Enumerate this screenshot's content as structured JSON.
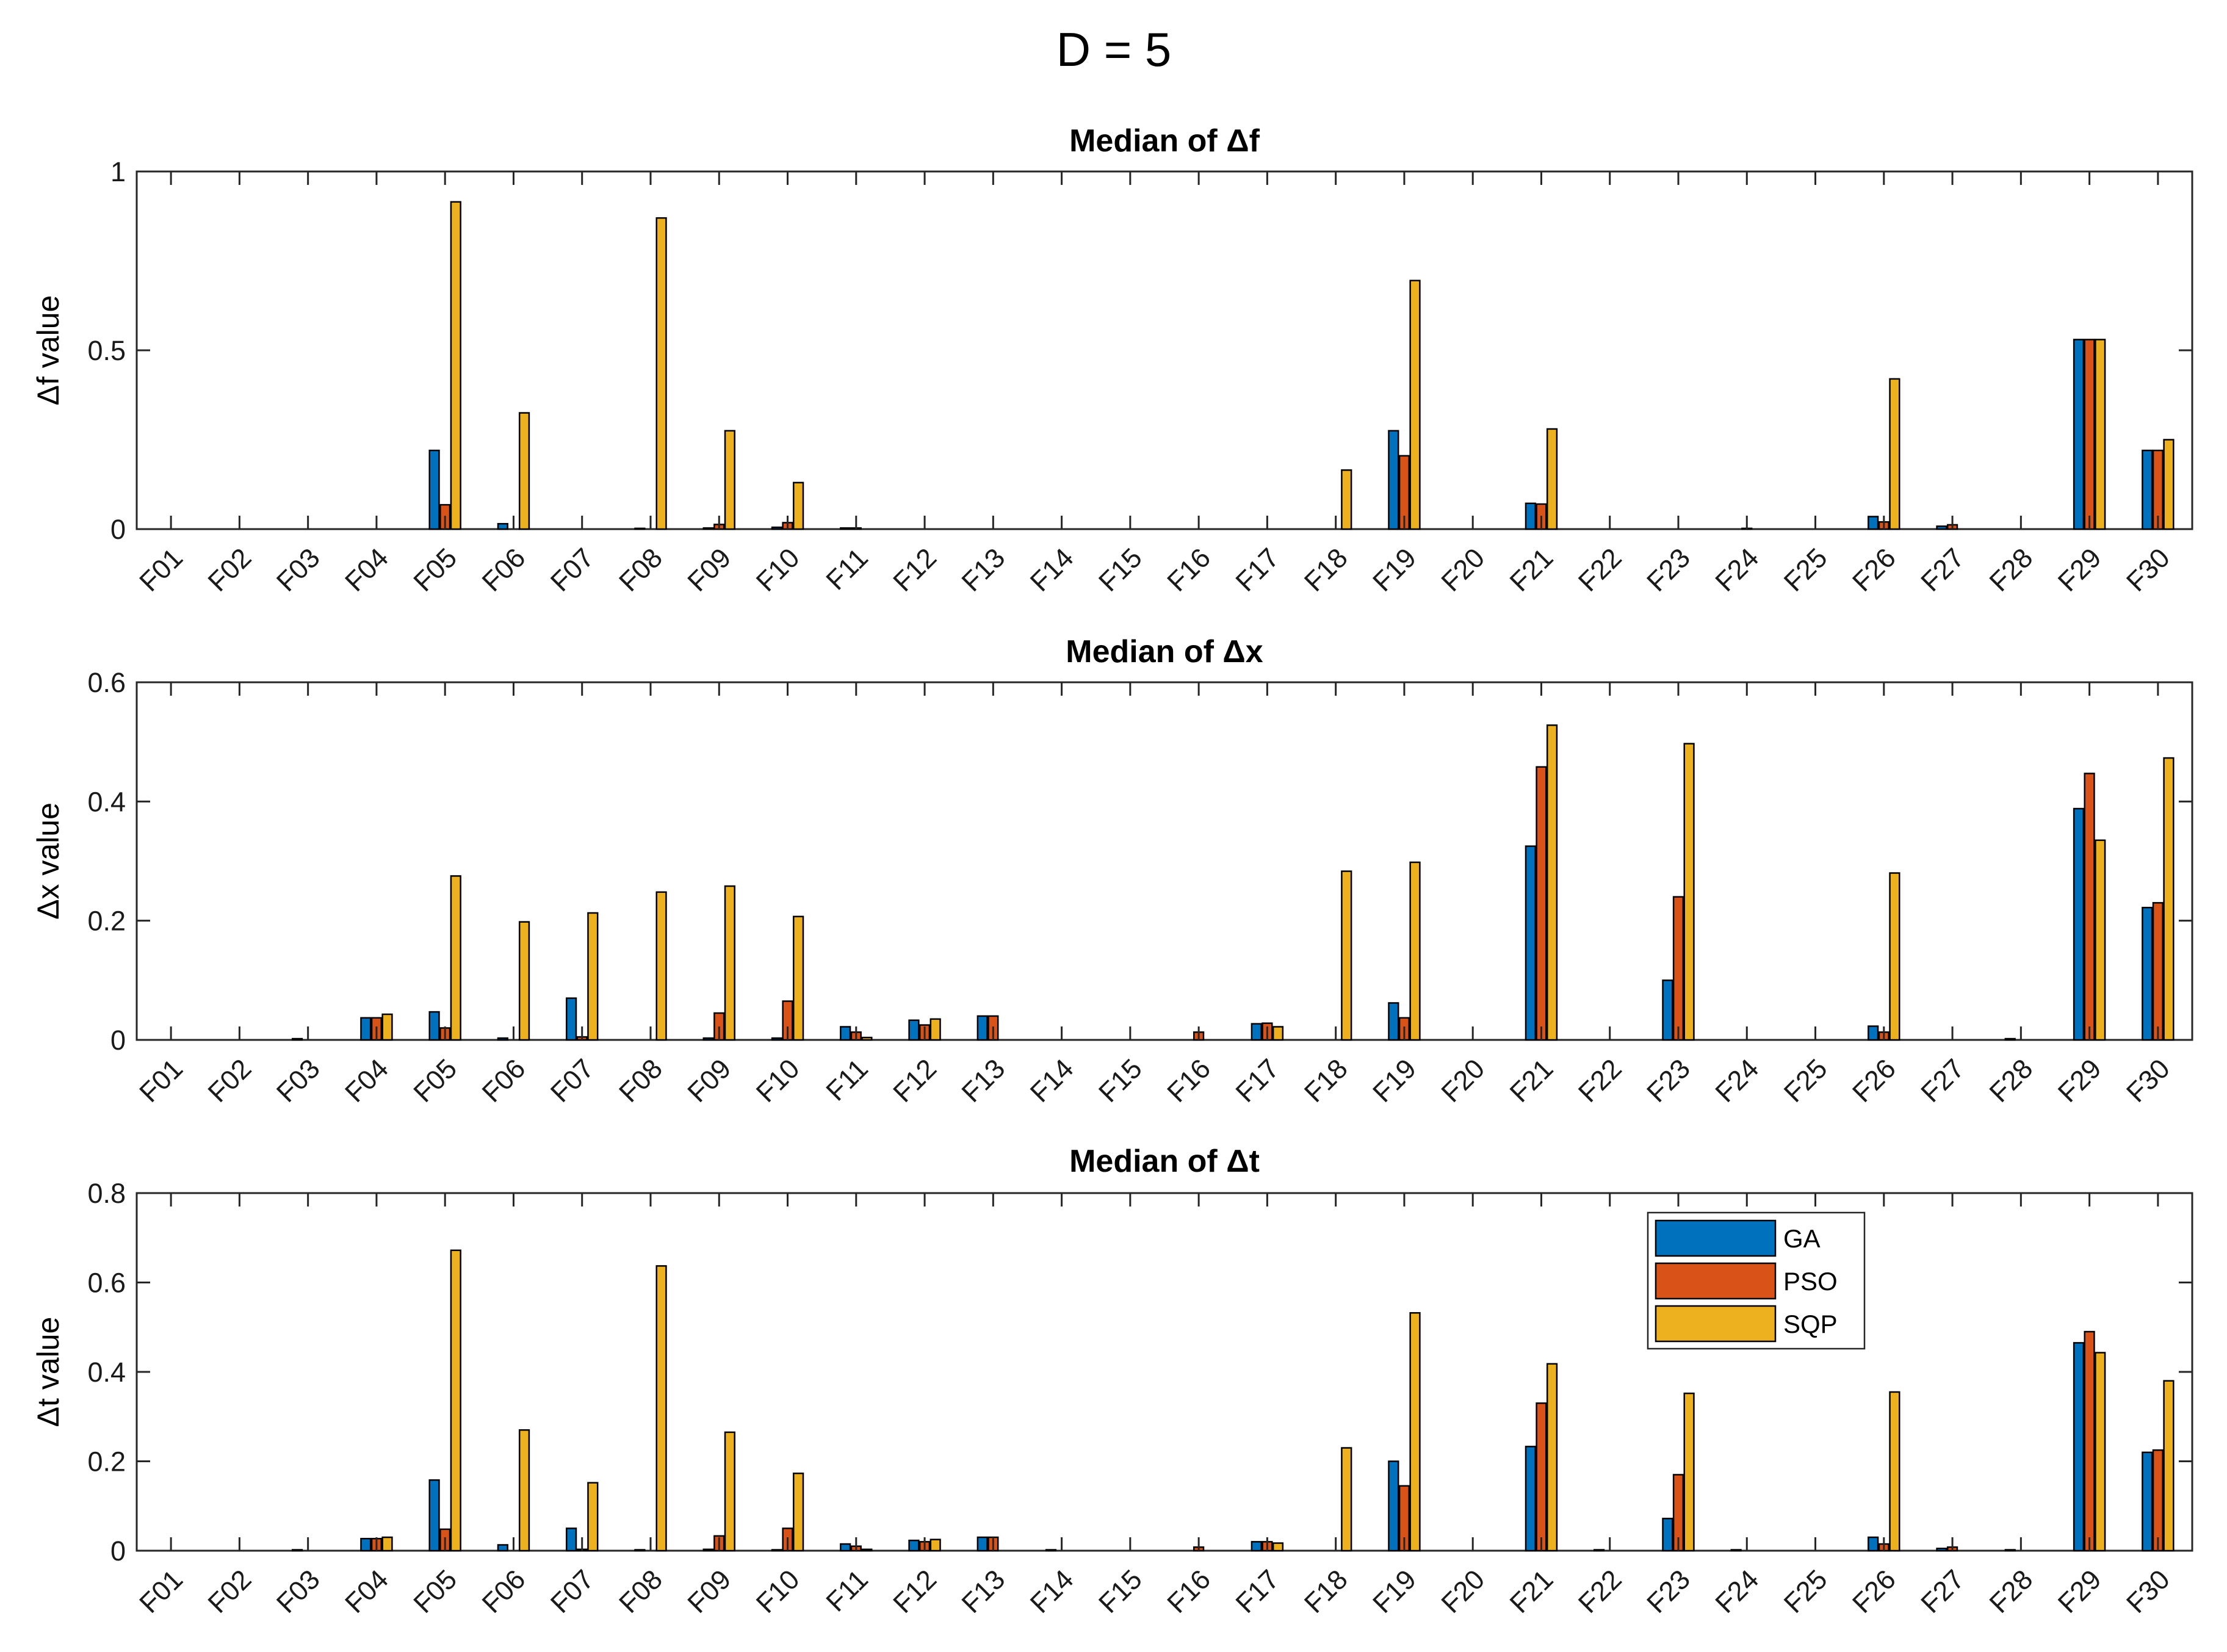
{
  "figure_title": "D = 5",
  "colors": {
    "GA": "#0072BD",
    "PSO": "#D95319",
    "SQP": "#EDB120"
  },
  "chart_data": [
    {
      "type": "bar",
      "title": "Median of Δf",
      "ylabel": "Δf value",
      "xlabel": "",
      "ylim": [
        0,
        1
      ],
      "yticks": [
        0,
        0.5,
        1
      ],
      "ytick_labels": [
        "0",
        "0.5",
        "1"
      ],
      "categories": [
        "F01",
        "F02",
        "F03",
        "F04",
        "F05",
        "F06",
        "F07",
        "F08",
        "F09",
        "F10",
        "F11",
        "F12",
        "F13",
        "F14",
        "F15",
        "F16",
        "F17",
        "F18",
        "F19",
        "F20",
        "F21",
        "F22",
        "F23",
        "F24",
        "F25",
        "F26",
        "F27",
        "F28",
        "F29",
        "F30"
      ],
      "series": [
        {
          "name": "GA",
          "values": [
            0,
            0,
            0,
            0,
            0.22,
            0.015,
            0,
            0.002,
            0.003,
            0.005,
            0.003,
            0,
            0,
            0,
            0,
            0,
            0,
            0,
            0.275,
            0,
            0.072,
            0,
            0,
            0,
            0,
            0.035,
            0.008,
            0,
            0.53,
            0.22
          ]
        },
        {
          "name": "PSO",
          "values": [
            0,
            0,
            0,
            0,
            0.068,
            0,
            0,
            0,
            0.013,
            0.018,
            0.003,
            0,
            0,
            0,
            0,
            0,
            0,
            0,
            0.205,
            0,
            0.07,
            0,
            0,
            0.002,
            0,
            0.02,
            0.012,
            0,
            0.53,
            0.22
          ]
        },
        {
          "name": "SQP",
          "values": [
            0,
            0,
            0,
            0,
            0.915,
            0.325,
            0,
            0.87,
            0.275,
            0.13,
            0,
            0,
            0,
            0,
            0,
            0,
            0,
            0.165,
            0.695,
            0,
            0.28,
            0,
            0,
            0,
            0,
            0.42,
            0,
            0,
            0.53,
            0.25
          ]
        }
      ]
    },
    {
      "type": "bar",
      "title": "Median of Δx",
      "ylabel": "Δx value",
      "xlabel": "",
      "ylim": [
        0,
        0.6
      ],
      "yticks": [
        0,
        0.2,
        0.4,
        0.6
      ],
      "ytick_labels": [
        "0",
        "0.2",
        "0.4",
        "0.6"
      ],
      "categories": [
        "F01",
        "F02",
        "F03",
        "F04",
        "F05",
        "F06",
        "F07",
        "F08",
        "F09",
        "F10",
        "F11",
        "F12",
        "F13",
        "F14",
        "F15",
        "F16",
        "F17",
        "F18",
        "F19",
        "F20",
        "F21",
        "F22",
        "F23",
        "F24",
        "F25",
        "F26",
        "F27",
        "F28",
        "F29",
        "F30"
      ],
      "series": [
        {
          "name": "GA",
          "values": [
            0,
            0,
            0.002,
            0.037,
            0.047,
            0.003,
            0.07,
            0,
            0.003,
            0.003,
            0.022,
            0.033,
            0.04,
            0,
            0,
            0,
            0.027,
            0,
            0.062,
            0,
            0.325,
            0,
            0.1,
            0,
            0,
            0.023,
            0,
            0.002,
            0.388,
            0.222
          ]
        },
        {
          "name": "PSO",
          "values": [
            0,
            0,
            0,
            0.037,
            0.02,
            0,
            0.005,
            0,
            0.045,
            0.065,
            0.013,
            0.025,
            0.04,
            0,
            0,
            0.013,
            0.028,
            0,
            0.037,
            0,
            0.458,
            0,
            0.24,
            0,
            0,
            0.013,
            0,
            0,
            0.447,
            0.23
          ]
        },
        {
          "name": "SQP",
          "values": [
            0,
            0,
            0,
            0.043,
            0.275,
            0.198,
            0.213,
            0.248,
            0.258,
            0.207,
            0.004,
            0.035,
            0,
            0,
            0,
            0,
            0.022,
            0.283,
            0.298,
            0,
            0.528,
            0,
            0.497,
            0,
            0,
            0.28,
            0,
            0,
            0.335,
            0.473
          ]
        }
      ]
    },
    {
      "type": "bar",
      "title": "Median of Δt",
      "ylabel": "Δt value",
      "xlabel": "",
      "ylim": [
        0,
        0.8
      ],
      "yticks": [
        0,
        0.2,
        0.4,
        0.6,
        0.8
      ],
      "ytick_labels": [
        "0",
        "0.2",
        "0.4",
        "0.6",
        "0.8"
      ],
      "categories": [
        "F01",
        "F02",
        "F03",
        "F04",
        "F05",
        "F06",
        "F07",
        "F08",
        "F09",
        "F10",
        "F11",
        "F12",
        "F13",
        "F14",
        "F15",
        "F16",
        "F17",
        "F18",
        "F19",
        "F20",
        "F21",
        "F22",
        "F23",
        "F24",
        "F25",
        "F26",
        "F27",
        "F28",
        "F29",
        "F30"
      ],
      "series": [
        {
          "name": "GA",
          "values": [
            0,
            0,
            0.002,
            0.027,
            0.158,
            0.013,
            0.05,
            0.002,
            0.003,
            0.002,
            0.015,
            0.023,
            0.03,
            0.002,
            0,
            0,
            0.02,
            0,
            0.2,
            0,
            0.233,
            0.002,
            0.072,
            0.002,
            0,
            0.03,
            0.005,
            0.002,
            0.465,
            0.22
          ]
        },
        {
          "name": "PSO",
          "values": [
            0,
            0,
            0,
            0.027,
            0.048,
            0,
            0.003,
            0,
            0.033,
            0.05,
            0.01,
            0.02,
            0.03,
            0,
            0,
            0.008,
            0.02,
            0,
            0.145,
            0,
            0.33,
            0,
            0.17,
            0,
            0,
            0.015,
            0.008,
            0,
            0.49,
            0.225
          ]
        },
        {
          "name": "SQP",
          "values": [
            0,
            0,
            0,
            0.03,
            0.672,
            0.27,
            0.152,
            0.637,
            0.265,
            0.173,
            0.003,
            0.025,
            0,
            0,
            0,
            0,
            0.017,
            0.23,
            0.532,
            0,
            0.418,
            0,
            0.352,
            0,
            0,
            0.355,
            0,
            0,
            0.443,
            0.38
          ]
        }
      ],
      "legend": {
        "position": "top-right-inside",
        "entries": [
          "GA",
          "PSO",
          "SQP"
        ]
      }
    }
  ]
}
